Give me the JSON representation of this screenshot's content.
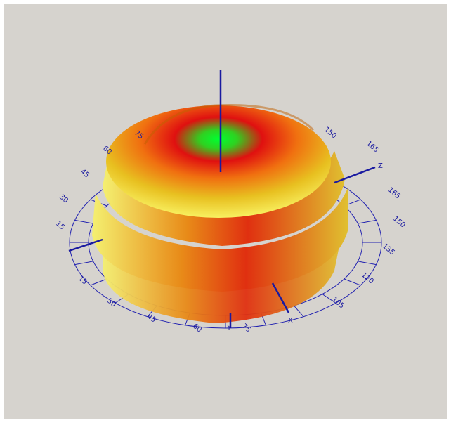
{
  "axes": {
    "x": "X",
    "y": "Y",
    "z": "Z"
  },
  "ring_labels": [
    "15",
    "30",
    "45",
    "60",
    "75",
    "105",
    "120",
    "135",
    "150",
    "165",
    "165",
    "150",
    "15",
    "30",
    "45",
    "60",
    "75"
  ]
}
